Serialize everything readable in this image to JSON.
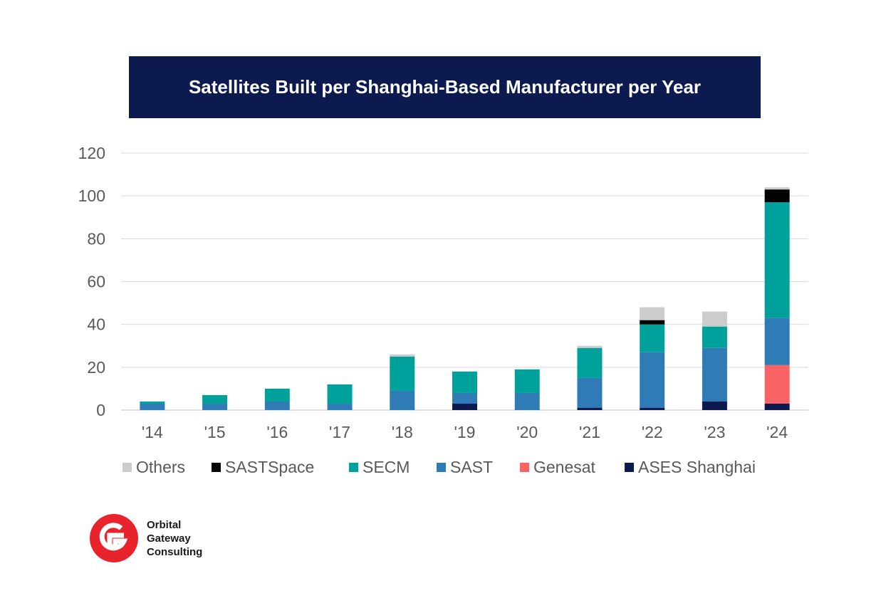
{
  "title": "Satellites Built per Shanghai-Based Manufacturer per Year",
  "logo": {
    "lines": [
      "Orbital",
      "Gateway",
      "Consulting"
    ],
    "color": "#e8232c"
  },
  "chart_data": {
    "type": "bar",
    "stacked": true,
    "title": "Satellites Built per Shanghai-Based Manufacturer per Year",
    "xlabel": "",
    "ylabel": "",
    "categories": [
      "'14",
      "'15",
      "'16",
      "'17",
      "'18",
      "'19",
      "'20",
      "'21",
      "'22",
      "'23",
      "'24"
    ],
    "ylim": [
      0,
      120
    ],
    "yticks": [
      0,
      20,
      40,
      60,
      80,
      100,
      120
    ],
    "grid": true,
    "legend_position": "bottom",
    "series": [
      {
        "name": "ASES Shanghai",
        "color": "#0c1a4f",
        "values": [
          0,
          0,
          0,
          0,
          0,
          3,
          0,
          1,
          1,
          4,
          3
        ]
      },
      {
        "name": "Genesat",
        "color": "#f86466",
        "values": [
          0,
          0,
          0,
          0,
          0,
          0,
          0,
          0,
          0,
          0,
          18
        ]
      },
      {
        "name": "SAST",
        "color": "#2e7bb6",
        "values": [
          3,
          3,
          4,
          3,
          9,
          5,
          8,
          14,
          26,
          25,
          22
        ]
      },
      {
        "name": "SECM",
        "color": "#00a19a",
        "values": [
          1,
          4,
          6,
          9,
          16,
          10,
          11,
          14,
          13,
          10,
          54
        ]
      },
      {
        "name": "SASTSpace",
        "color": "#000000",
        "values": [
          0,
          0,
          0,
          0,
          0,
          0,
          0,
          0,
          2,
          0,
          6
        ]
      },
      {
        "name": "Others",
        "color": "#cccccc",
        "values": [
          0,
          0,
          0,
          0,
          1,
          0,
          0,
          1,
          6,
          7,
          1
        ]
      }
    ],
    "legend_order": [
      "Others",
      "SASTSpace",
      "SECM",
      "SAST",
      "Genesat",
      "ASES Shanghai"
    ]
  }
}
